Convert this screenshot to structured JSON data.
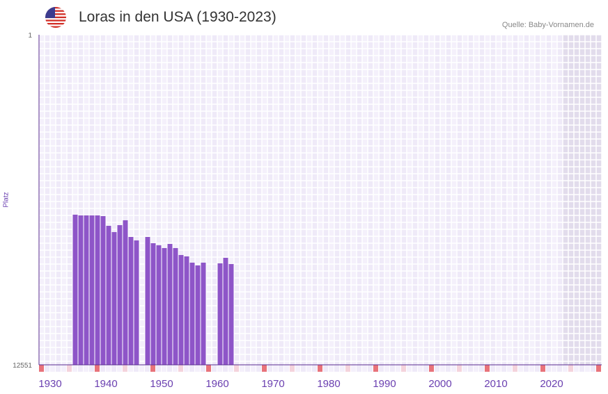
{
  "header": {
    "title": "Loras in den USA (1930-2023)",
    "source": "Quelle: Baby-Vornamen.de",
    "flag_icon": "us-flag-icon"
  },
  "chart_data": {
    "type": "bar",
    "title": "Loras in den USA (1930-2023)",
    "xlabel": "",
    "ylabel": "Platz",
    "y_inverted": true,
    "ylim": [
      1,
      12551
    ],
    "ytick_labels": [
      "1",
      "12551"
    ],
    "xlim": [
      1930,
      2030
    ],
    "xtick_labels": [
      "1930",
      "1940",
      "1950",
      "1960",
      "1970",
      "1980",
      "1990",
      "2000",
      "2010",
      "2020"
    ],
    "shaded_future_from": 2024,
    "x": [
      1936,
      1937,
      1938,
      1939,
      1940,
      1941,
      1942,
      1943,
      1944,
      1945,
      1946,
      1947,
      1949,
      1950,
      1951,
      1952,
      1953,
      1954,
      1955,
      1956,
      1957,
      1958,
      1959,
      1962,
      1963,
      1964
    ],
    "values": [
      6843,
      6870,
      6870,
      6870,
      6870,
      6896,
      7266,
      7504,
      7240,
      7055,
      7689,
      7821,
      7689,
      7927,
      8006,
      8112,
      7954,
      8112,
      8376,
      8429,
      8667,
      8772,
      8667,
      8693,
      8482,
      8719
    ],
    "colors": {
      "bar": "#8e55c8",
      "axis": "#5a2d91",
      "decade_marker": "#e8737a",
      "half_decade_marker": "#f4d3dc",
      "shade": "#e2dcec"
    },
    "grid": true
  }
}
